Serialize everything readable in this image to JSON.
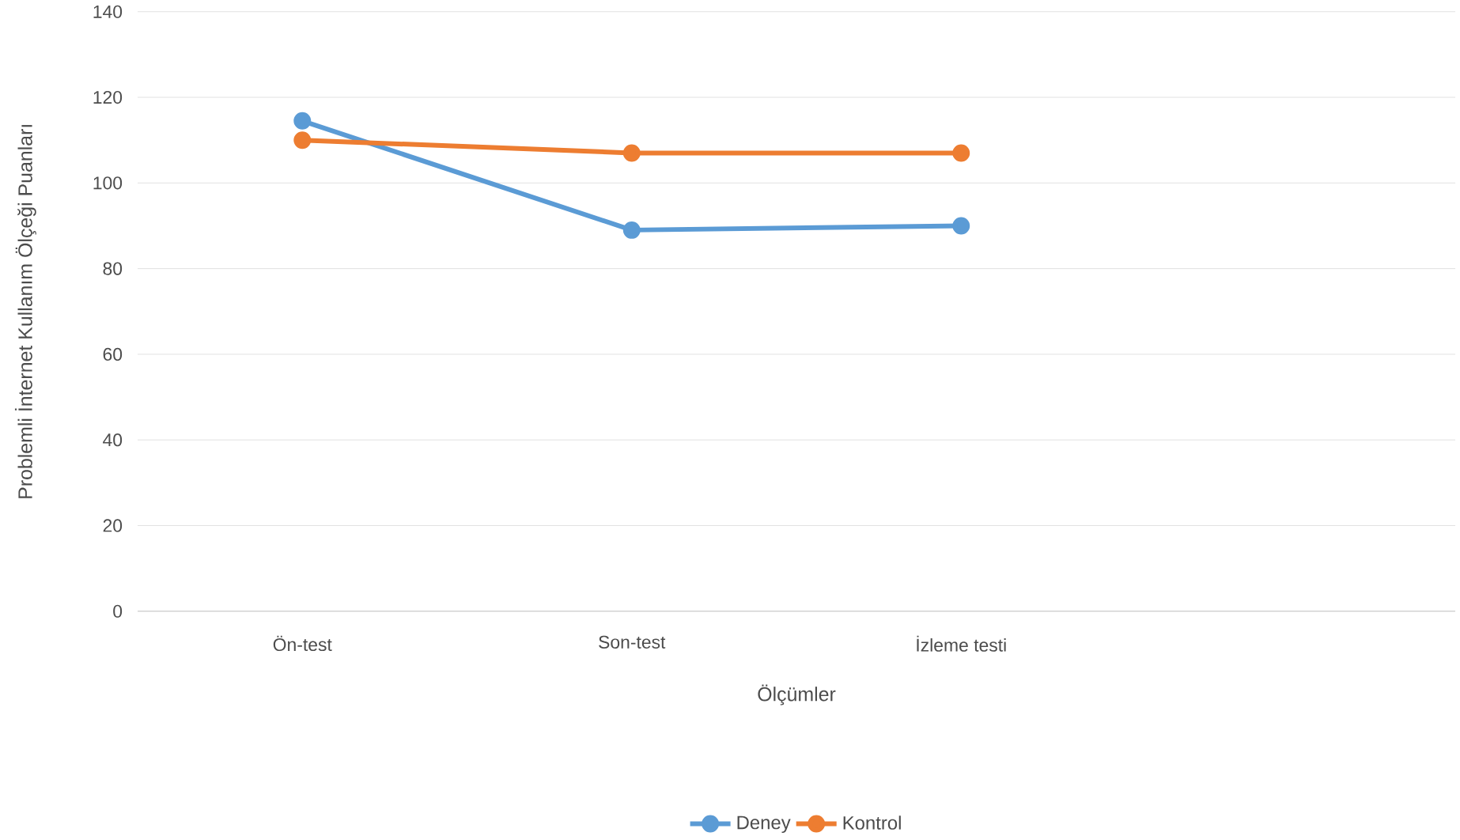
{
  "chart_data": {
    "type": "line",
    "xlabel": "Ölçümler",
    "ylabel": "Problemli İnternet Kullanım Ölçeği Puanları",
    "categories": [
      "Ön-test",
      "Son-test",
      "İzleme testi",
      null
    ],
    "series": [
      {
        "name": "Deney",
        "color": "#5b9bd5",
        "values": [
          114.5,
          89,
          90,
          null
        ]
      },
      {
        "name": "Kontrol",
        "color": "#ed7d31",
        "values": [
          110,
          107,
          107,
          null
        ]
      }
    ],
    "ylim": [
      0,
      140
    ],
    "yticks": [
      0,
      20,
      40,
      60,
      80,
      100,
      120,
      140
    ],
    "grid": "y",
    "legend": "bottom",
    "marker": "circle",
    "line_style": "solid"
  }
}
